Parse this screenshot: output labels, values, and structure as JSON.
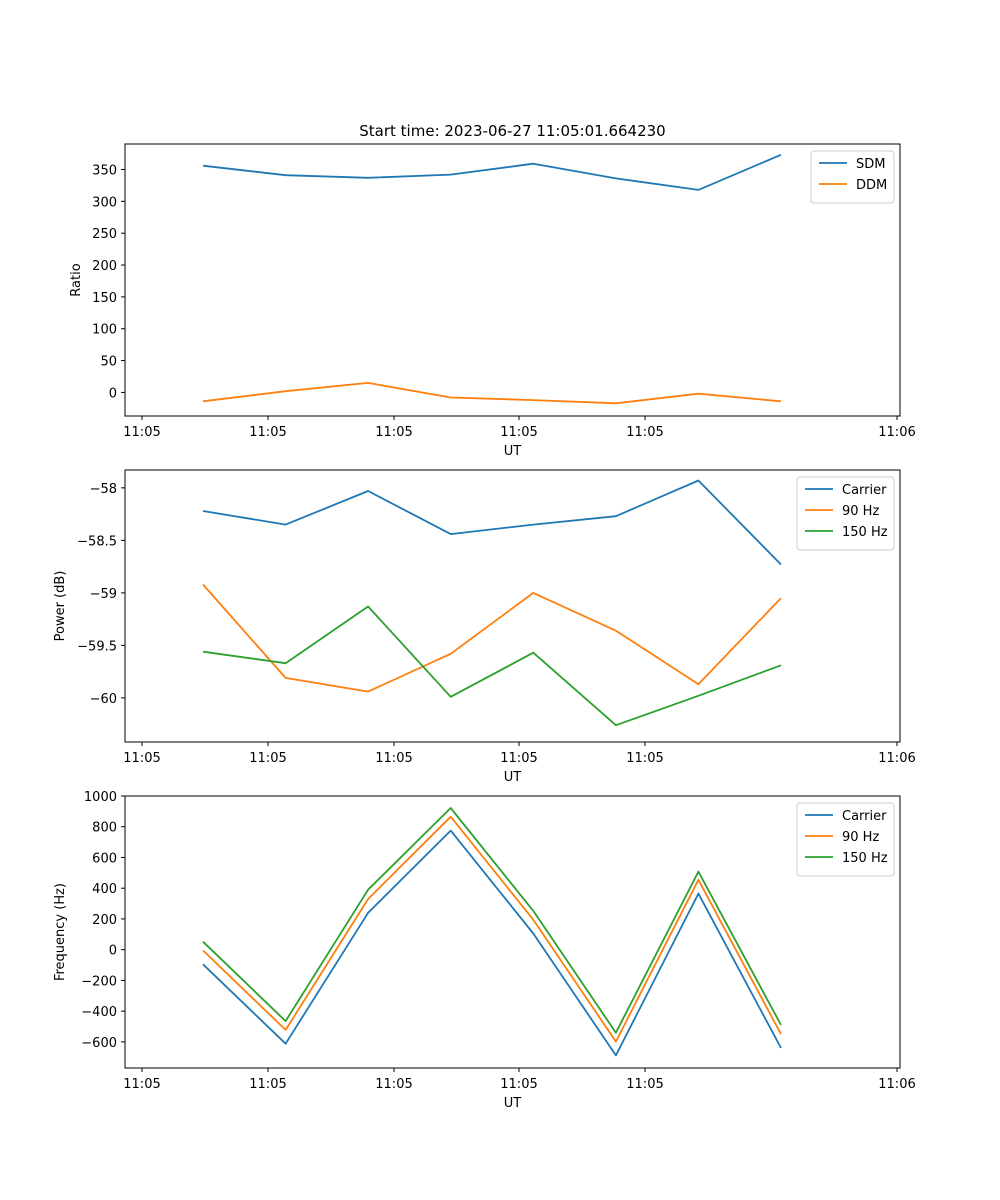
{
  "figure": {
    "title": "Start time: 2023-06-27 11:05:01.664230"
  },
  "chart_data": [
    {
      "type": "line",
      "name": "ratio-chart",
      "x": [
        "11:05:01.66",
        "11:05:01.88",
        "11:05:02.10",
        "11:05:02.32",
        "11:05:02.54",
        "11:05:02.76",
        "11:05:02.98",
        "11:05:03.20"
      ],
      "x_ticks": [
        "11:05",
        "11:05",
        "11:05",
        "11:05",
        "11:05",
        "11:06"
      ],
      "xlabel": "UT",
      "ylabel": "Ratio",
      "ylim": [
        -37,
        390
      ],
      "y_ticks": [
        0,
        50,
        100,
        150,
        200,
        250,
        300,
        350
      ],
      "legend_position": "top-right",
      "series": [
        {
          "name": "SDM",
          "color": "#1f77b4",
          "values": [
            356,
            341,
            337,
            342,
            359,
            336,
            318,
            373
          ]
        },
        {
          "name": "DDM",
          "color": "#ff7f0e",
          "values": [
            -14,
            2,
            15,
            -8,
            -12,
            -17,
            -2,
            -14
          ]
        }
      ]
    },
    {
      "type": "line",
      "name": "power-chart",
      "x": [
        "11:05:01.66",
        "11:05:01.88",
        "11:05:02.10",
        "11:05:02.32",
        "11:05:02.54",
        "11:05:02.76",
        "11:05:02.98",
        "11:05:03.20"
      ],
      "x_ticks": [
        "11:05",
        "11:05",
        "11:05",
        "11:05",
        "11:05",
        "11:06"
      ],
      "xlabel": "UT",
      "ylabel": "Power (dB)",
      "ylim": [
        -60.42,
        -57.83
      ],
      "y_ticks": [
        -58.0,
        -58.5,
        -59.0,
        -59.5,
        -60.0
      ],
      "legend_position": "top-right",
      "series": [
        {
          "name": "Carrier",
          "color": "#1f77b4",
          "values": [
            -58.22,
            -58.35,
            -58.03,
            -58.44,
            -58.35,
            -58.27,
            -57.93,
            -58.73
          ]
        },
        {
          "name": "90 Hz",
          "color": "#ff7f0e",
          "values": [
            -58.92,
            -59.81,
            -59.94,
            -59.58,
            -59.0,
            -59.36,
            -59.87,
            -59.05
          ]
        },
        {
          "name": "150 Hz",
          "color": "#2ca02c",
          "values": [
            -59.56,
            -59.67,
            -59.13,
            -59.99,
            -59.57,
            -60.26,
            -59.98,
            -59.69
          ]
        }
      ]
    },
    {
      "type": "line",
      "name": "frequency-chart",
      "x": [
        "11:05:01.66",
        "11:05:01.88",
        "11:05:02.10",
        "11:05:02.32",
        "11:05:02.54",
        "11:05:02.76",
        "11:05:02.98",
        "11:05:03.20"
      ],
      "x_ticks": [
        "11:05",
        "11:05",
        "11:05",
        "11:05",
        "11:05",
        "11:06"
      ],
      "xlabel": "UT",
      "ylabel": "Frequency (Hz)",
      "ylim": [
        -770,
        1000
      ],
      "y_ticks": [
        1000,
        800,
        600,
        400,
        200,
        0,
        -200,
        -400,
        -600
      ],
      "legend_position": "top-right",
      "series": [
        {
          "name": "Carrier",
          "color": "#1f77b4",
          "values": [
            -95,
            -612,
            240,
            775,
            105,
            -688,
            365,
            -640
          ]
        },
        {
          "name": "90 Hz",
          "color": "#ff7f0e",
          "values": [
            -5,
            -522,
            330,
            865,
            195,
            -598,
            455,
            -550
          ]
        },
        {
          "name": "150 Hz",
          "color": "#2ca02c",
          "values": [
            52,
            -465,
            390,
            922,
            252,
            -540,
            508,
            -490
          ]
        }
      ]
    }
  ]
}
